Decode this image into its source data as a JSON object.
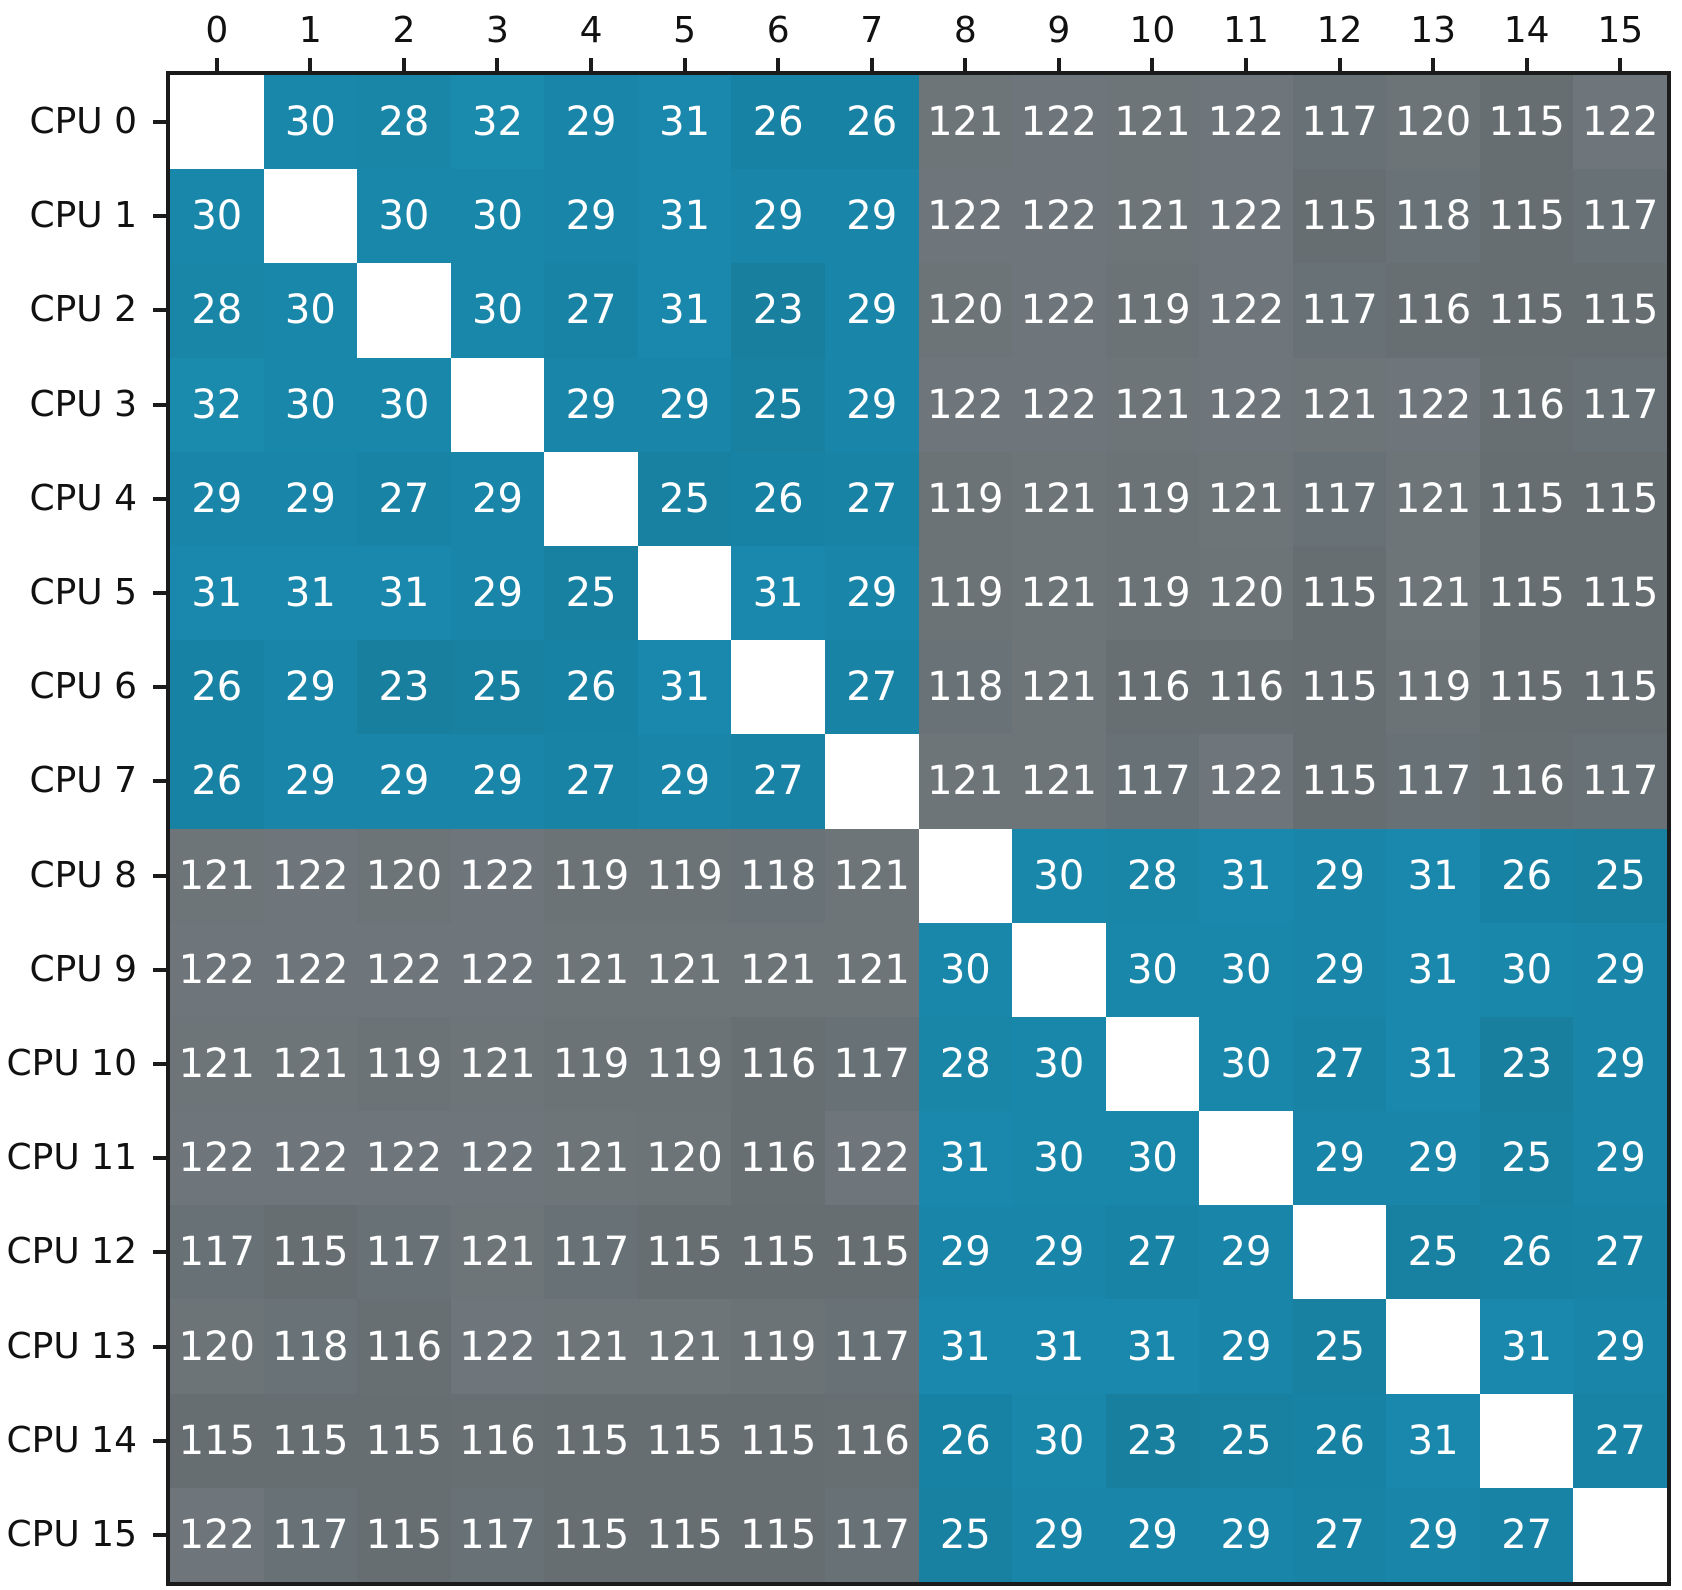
{
  "chart_data": {
    "type": "heatmap",
    "title": "",
    "xlabel": "",
    "ylabel": "",
    "col_labels": [
      "0",
      "1",
      "2",
      "3",
      "4",
      "5",
      "6",
      "7",
      "8",
      "9",
      "10",
      "11",
      "12",
      "13",
      "14",
      "15"
    ],
    "row_labels": [
      "CPU 0",
      "CPU 1",
      "CPU 2",
      "CPU 3",
      "CPU 4",
      "CPU 5",
      "CPU 6",
      "CPU 7",
      "CPU 8",
      "CPU 9",
      "CPU 10",
      "CPU 11",
      "CPU 12",
      "CPU 13",
      "CPU 14",
      "CPU 15"
    ],
    "matrix": [
      [
        null,
        30,
        28,
        32,
        29,
        31,
        26,
        26,
        121,
        122,
        121,
        122,
        117,
        120,
        115,
        122
      ],
      [
        30,
        null,
        30,
        30,
        29,
        31,
        29,
        29,
        122,
        122,
        121,
        122,
        115,
        118,
        115,
        117
      ],
      [
        28,
        30,
        null,
        30,
        27,
        31,
        23,
        29,
        120,
        122,
        119,
        122,
        117,
        116,
        115,
        115
      ],
      [
        32,
        30,
        30,
        null,
        29,
        29,
        25,
        29,
        122,
        122,
        121,
        122,
        121,
        122,
        116,
        117
      ],
      [
        29,
        29,
        27,
        29,
        null,
        25,
        26,
        27,
        119,
        121,
        119,
        121,
        117,
        121,
        115,
        115
      ],
      [
        31,
        31,
        31,
        29,
        25,
        null,
        31,
        29,
        119,
        121,
        119,
        120,
        115,
        121,
        115,
        115
      ],
      [
        26,
        29,
        23,
        25,
        26,
        31,
        null,
        27,
        118,
        121,
        116,
        116,
        115,
        119,
        115,
        115
      ],
      [
        26,
        29,
        29,
        29,
        27,
        29,
        27,
        null,
        121,
        121,
        117,
        122,
        115,
        117,
        116,
        117
      ],
      [
        121,
        122,
        120,
        122,
        119,
        119,
        118,
        121,
        null,
        30,
        28,
        31,
        29,
        31,
        26,
        25
      ],
      [
        122,
        122,
        122,
        122,
        121,
        121,
        121,
        121,
        30,
        null,
        30,
        30,
        29,
        31,
        30,
        29
      ],
      [
        121,
        121,
        119,
        121,
        119,
        119,
        116,
        117,
        28,
        30,
        null,
        30,
        27,
        31,
        23,
        29
      ],
      [
        122,
        122,
        122,
        122,
        121,
        120,
        116,
        122,
        31,
        30,
        30,
        null,
        29,
        29,
        25,
        29
      ],
      [
        117,
        115,
        117,
        121,
        117,
        115,
        115,
        115,
        29,
        29,
        27,
        29,
        null,
        25,
        26,
        27
      ],
      [
        120,
        118,
        116,
        122,
        121,
        121,
        119,
        117,
        31,
        31,
        31,
        29,
        25,
        null,
        31,
        29
      ],
      [
        115,
        115,
        115,
        116,
        115,
        115,
        115,
        116,
        26,
        30,
        23,
        25,
        26,
        31,
        null,
        27
      ],
      [
        122,
        117,
        115,
        117,
        115,
        115,
        115,
        117,
        25,
        29,
        29,
        29,
        27,
        29,
        27,
        null
      ]
    ],
    "colors": {
      "low_cells": "#1987aa",
      "high_cells": "#6e757a",
      "diagonal": "#ffffff",
      "cell_text": "#ffffff",
      "axis_text": "#111111",
      "frame": "#1b1b1b"
    },
    "value_domain": {
      "low_min": 23,
      "low_max": 32,
      "high_min": 115,
      "high_max": 122
    },
    "legend": "none",
    "grid_lines": "off"
  }
}
